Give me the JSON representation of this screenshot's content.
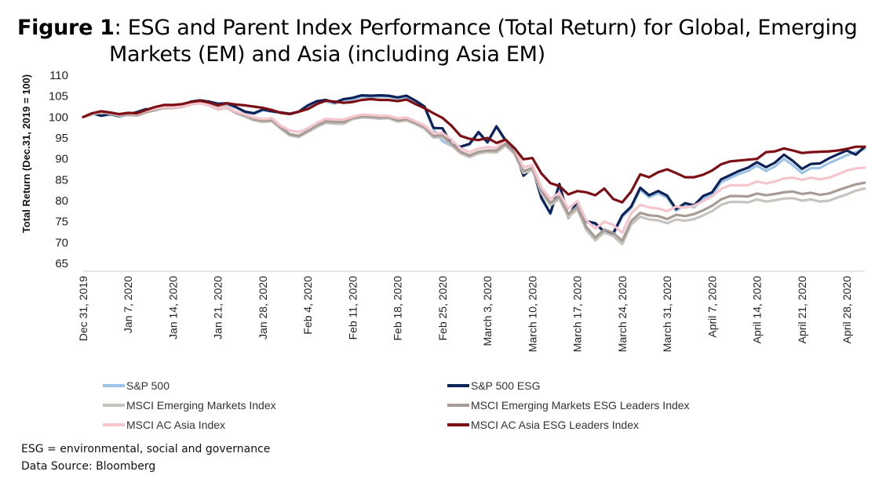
{
  "title": {
    "prefix": "Figure 1",
    "line1": ": ESG and Parent Index Performance (Total Return) for Global, Emerging",
    "line2": "Markets (EM) and Asia (including Asia EM)"
  },
  "footer": {
    "note": "ESG = environmental, social and governance",
    "source": "Data Source: Bloomberg"
  },
  "chart_data": {
    "type": "line",
    "ylabel": "Total Return (Dec.31, 2019 = 100)",
    "ylim": [
      65,
      110
    ],
    "yticks": [
      65,
      70,
      75,
      80,
      85,
      90,
      95,
      100,
      105,
      110
    ],
    "x": [
      "Dec 31, 2019",
      "Jan 1, 2020",
      "Jan 2, 2020",
      "Jan 3, 2020",
      "Jan 6, 2020",
      "Jan 7, 2020",
      "Jan 8, 2020",
      "Jan 9, 2020",
      "Jan 10, 2020",
      "Jan 13, 2020",
      "Jan 14, 2020",
      "Jan 15, 2020",
      "Jan 16, 2020",
      "Jan 17, 2020",
      "Jan 20, 2020",
      "Jan 21, 2020",
      "Jan 22, 2020",
      "Jan 23, 2020",
      "Jan 24, 2020",
      "Jan 27, 2020",
      "Jan 28, 2020",
      "Jan 29, 2020",
      "Jan 30, 2020",
      "Jan 31, 2020",
      "Feb 3, 2020",
      "Feb 4, 2020",
      "Feb 5, 2020",
      "Feb 6, 2020",
      "Feb 7, 2020",
      "Feb 10, 2020",
      "Feb 11, 2020",
      "Feb 12, 2020",
      "Feb 13, 2020",
      "Feb 14, 2020",
      "Feb 17, 2020",
      "Feb 18, 2020",
      "Feb 19, 2020",
      "Feb 20, 2020",
      "Feb 21, 2020",
      "Feb 24, 2020",
      "Feb 25, 2020",
      "Feb 26, 2020",
      "Feb 27, 2020",
      "Feb 28, 2020",
      "March 2, 2020",
      "March 3, 2020",
      "March 4, 2020",
      "March 5, 2020",
      "March 6, 2020",
      "March 9, 2020",
      "March 10, 2020",
      "March 11, 2020",
      "March 12, 2020",
      "March 13, 2020",
      "March 16, 2020",
      "March 17, 2020",
      "March 18, 2020",
      "March 19, 2020",
      "March 20, 2020",
      "March 23, 2020",
      "March 24, 2020",
      "March 25, 2020",
      "March 26, 2020",
      "March 27, 2020",
      "March 30, 2020",
      "March 31, 2020",
      "April 1, 2020",
      "April 2, 2020",
      "April 3, 2020",
      "April 6, 2020",
      "April 7, 2020",
      "April 8, 2020",
      "April 9, 2020",
      "April 10, 2020",
      "April 13, 2020",
      "April 14, 2020",
      "April 15, 2020",
      "April 16, 2020",
      "April 17, 2020",
      "April 20, 2020",
      "April 21, 2020",
      "April 22, 2020",
      "April 23, 2020",
      "April 24, 2020",
      "April 27, 2020",
      "April 28, 2020",
      "April 29, 2020",
      "April 30, 2020"
    ],
    "xticks": [
      {
        "i": 0,
        "label": "Dec 31, 2019"
      },
      {
        "i": 5,
        "label": "Jan 7, 2020"
      },
      {
        "i": 10,
        "label": "Jan 14, 2020"
      },
      {
        "i": 15,
        "label": "Jan 21, 2020"
      },
      {
        "i": 20,
        "label": "Jan 28, 2020"
      },
      {
        "i": 25,
        "label": "Feb 4, 2020"
      },
      {
        "i": 30,
        "label": "Feb 11, 2020"
      },
      {
        "i": 35,
        "label": "Feb 18, 2020"
      },
      {
        "i": 40,
        "label": "Feb 25, 2020"
      },
      {
        "i": 45,
        "label": "March 3, 2020"
      },
      {
        "i": 50,
        "label": "March 10, 2020"
      },
      {
        "i": 55,
        "label": "March 17, 2020"
      },
      {
        "i": 60,
        "label": "March 24, 2020"
      },
      {
        "i": 65,
        "label": "March 31, 2020"
      },
      {
        "i": 70,
        "label": "April 7, 2020"
      },
      {
        "i": 75,
        "label": "April 14, 2020"
      },
      {
        "i": 80,
        "label": "April 21, 2020"
      },
      {
        "i": 85,
        "label": "April 28, 2020"
      }
    ],
    "grid": false,
    "legend_position": "bottom",
    "series": [
      {
        "name": "S&P 500",
        "color": "#9dc3e6",
        "width": 3.2,
        "values": [
          100,
          100.8,
          100.3,
          100.6,
          100.2,
          100.5,
          101.0,
          101.7,
          101.5,
          102.3,
          102.4,
          102.6,
          103.4,
          103.8,
          103.5,
          103.0,
          103.1,
          102.2,
          101.2,
          100.8,
          101.6,
          101.3,
          101.0,
          100.7,
          101.2,
          102.6,
          103.5,
          103.8,
          103.2,
          104.0,
          104.2,
          104.9,
          104.8,
          104.9,
          104.9,
          104.4,
          104.8,
          103.6,
          102.3,
          97.1,
          94.2,
          93.1,
          92.8,
          93.4,
          96.2,
          93.8,
          97.6,
          94.3,
          92.1,
          85.9,
          87.7,
          80.5,
          76.8,
          83.7,
          75.8,
          79.6,
          74.8,
          74.3,
          72.3,
          71.8,
          76.1,
          78.2,
          82.6,
          80.8,
          81.8,
          80.7,
          77.6,
          79.0,
          78.4,
          80.6,
          81.4,
          84.4,
          85.4,
          86.4,
          87.1,
          88.4,
          87.1,
          88.2,
          90.0,
          88.5,
          86.6,
          87.8,
          87.8,
          89.0,
          89.9,
          90.9,
          91.6,
          92.4
        ]
      },
      {
        "name": "S&P 500 ESG",
        "color": "#0d2258",
        "width": 3.2,
        "values": [
          100,
          100.9,
          100.3,
          100.7,
          100.2,
          100.6,
          101.2,
          101.9,
          101.7,
          102.5,
          102.6,
          102.8,
          103.7,
          104.0,
          103.7,
          103.2,
          103.3,
          102.4,
          101.3,
          100.9,
          101.8,
          101.4,
          101.1,
          100.8,
          101.3,
          102.8,
          103.8,
          104.1,
          103.5,
          104.3,
          104.6,
          105.2,
          105.1,
          105.2,
          105.1,
          104.7,
          105.1,
          103.9,
          102.5,
          97.4,
          97.3,
          93.4,
          92.9,
          93.6,
          96.4,
          94.0,
          97.8,
          94.5,
          92.2,
          86.0,
          87.9,
          80.7,
          77.0,
          84.0,
          76.1,
          79.9,
          75.1,
          74.6,
          72.6,
          72.2,
          76.5,
          78.6,
          83.1,
          81.3,
          82.3,
          81.2,
          78.0,
          79.4,
          78.9,
          81.1,
          82.0,
          85.1,
          86.1,
          87.1,
          87.9,
          89.2,
          88.0,
          89.1,
          91.0,
          89.5,
          87.6,
          88.8,
          88.9,
          90.1,
          91.1,
          92.0,
          91.0,
          92.9
        ]
      },
      {
        "name": "MSCI Emerging Markets Index",
        "color": "#c7c3bf",
        "width": 3.2,
        "values": [
          100,
          100.6,
          101.1,
          100.8,
          100.3,
          100.5,
          100.3,
          101.1,
          101.6,
          102.1,
          102.1,
          102.4,
          103.0,
          103.3,
          102.8,
          101.8,
          102.2,
          100.9,
          100.1,
          99.2,
          98.8,
          99.0,
          97.2,
          95.6,
          95.2,
          96.4,
          97.6,
          98.6,
          98.4,
          98.4,
          99.5,
          99.9,
          99.8,
          99.6,
          99.7,
          98.9,
          99.2,
          98.3,
          97.2,
          95.1,
          95.2,
          93.2,
          91.3,
          90.4,
          91.3,
          91.6,
          91.5,
          93.2,
          91.2,
          86.6,
          87.3,
          81.8,
          78.9,
          80.4,
          76.1,
          77.9,
          73.0,
          70.5,
          72.4,
          71.5,
          69.6,
          74.3,
          76.2,
          75.5,
          75.3,
          74.6,
          75.5,
          75.2,
          75.6,
          76.5,
          77.5,
          79.0,
          79.7,
          79.7,
          79.6,
          80.3,
          79.8,
          80.1,
          80.5,
          80.6,
          80.0,
          80.3,
          79.8,
          80.0,
          80.8,
          81.5,
          82.4,
          82.9
        ]
      },
      {
        "name": "MSCI Emerging Markets ESG Leaders Index",
        "color": "#a69c95",
        "width": 3.2,
        "values": [
          100,
          100.7,
          101.2,
          100.9,
          100.5,
          100.6,
          100.5,
          101.2,
          101.8,
          102.3,
          102.3,
          102.6,
          103.2,
          103.5,
          103.1,
          102.1,
          102.5,
          101.2,
          100.4,
          99.5,
          99.1,
          99.3,
          97.5,
          95.9,
          95.5,
          96.7,
          98.0,
          99.0,
          98.8,
          98.8,
          99.8,
          100.2,
          100.1,
          99.9,
          100.0,
          99.2,
          99.5,
          98.6,
          97.6,
          95.5,
          95.6,
          93.6,
          91.7,
          90.8,
          91.7,
          92.0,
          92.0,
          93.6,
          91.6,
          87.1,
          87.8,
          82.4,
          79.5,
          81.0,
          76.8,
          78.6,
          73.7,
          71.2,
          73.1,
          72.3,
          70.4,
          75.1,
          77.1,
          76.5,
          76.3,
          75.6,
          76.6,
          76.3,
          76.8,
          77.7,
          78.8,
          80.3,
          81.1,
          81.1,
          81.0,
          81.7,
          81.3,
          81.6,
          82.0,
          82.2,
          81.6,
          81.9,
          81.4,
          81.7,
          82.5,
          83.2,
          83.9,
          84.3
        ]
      },
      {
        "name": "MSCI AC Asia Index",
        "color": "#f7c5cd",
        "width": 3.2,
        "values": [
          100,
          100.8,
          101.3,
          101.0,
          100.6,
          100.9,
          100.7,
          101.5,
          102.0,
          102.4,
          102.3,
          102.6,
          103.1,
          103.4,
          102.9,
          102.0,
          102.4,
          101.3,
          100.6,
          99.9,
          99.5,
          99.7,
          97.9,
          96.8,
          96.4,
          97.3,
          98.6,
          99.6,
          99.4,
          99.4,
          100.1,
          100.6,
          100.5,
          100.3,
          100.3,
          99.7,
          99.9,
          99.0,
          98.0,
          96.1,
          96.2,
          94.6,
          92.5,
          91.6,
          92.5,
          92.8,
          92.7,
          94.5,
          92.5,
          88.0,
          88.5,
          83.2,
          80.4,
          81.9,
          78.1,
          79.9,
          75.3,
          73.3,
          75.0,
          74.2,
          72.3,
          77.0,
          79.0,
          78.4,
          78.1,
          77.5,
          78.6,
          78.3,
          78.8,
          79.9,
          81.0,
          82.8,
          83.7,
          83.7,
          83.7,
          84.6,
          84.1,
          84.6,
          85.3,
          85.5,
          85.0,
          85.5,
          85.1,
          85.5,
          86.3,
          87.2,
          87.7,
          87.9
        ]
      },
      {
        "name": "MSCI AC Asia ESG Leaders Index",
        "color": "#7c0f14",
        "width": 3.2,
        "values": [
          100,
          100.9,
          101.4,
          101.1,
          100.7,
          101.0,
          100.9,
          101.7,
          102.4,
          102.9,
          102.9,
          103.1,
          103.6,
          103.9,
          103.5,
          102.8,
          103.3,
          103.0,
          102.8,
          102.5,
          102.2,
          101.7,
          101.0,
          100.7,
          101.3,
          101.9,
          103.1,
          103.9,
          103.7,
          103.4,
          103.6,
          104.1,
          104.3,
          104.1,
          104.1,
          103.8,
          104.2,
          103.1,
          102.1,
          100.9,
          99.8,
          97.9,
          95.5,
          94.8,
          94.5,
          95.0,
          93.8,
          94.6,
          92.6,
          89.9,
          90.2,
          86.5,
          84.2,
          83.5,
          81.5,
          82.3,
          82.0,
          81.3,
          82.9,
          80.4,
          79.6,
          82.2,
          86.3,
          85.6,
          86.8,
          87.5,
          86.6,
          85.6,
          85.6,
          86.2,
          87.2,
          88.7,
          89.4,
          89.6,
          89.8,
          90.0,
          91.6,
          91.8,
          92.5,
          92.0,
          91.4,
          91.6,
          91.7,
          91.8,
          92.0,
          92.4,
          92.9,
          92.9
        ]
      }
    ]
  }
}
